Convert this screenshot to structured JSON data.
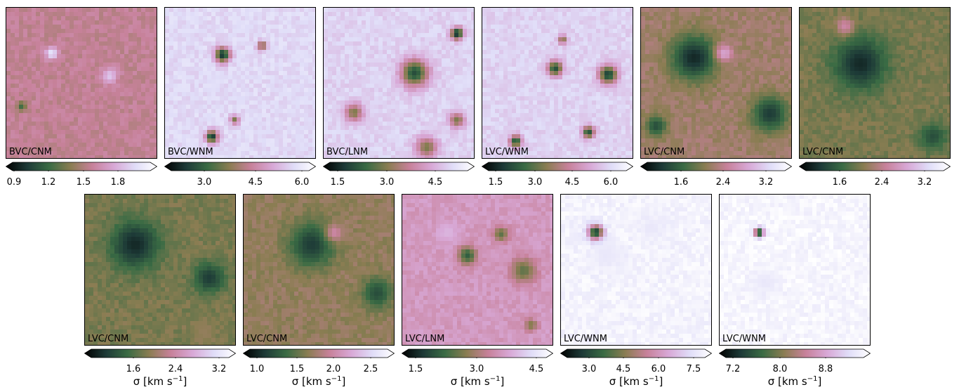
{
  "colormap": [
    "#000000",
    "#1d3a37",
    "#3a6b44",
    "#8a7d52",
    "#c7819a",
    "#d8a8d6",
    "#e0ddf8",
    "#ffffff"
  ],
  "panels": [
    {
      "label": "BVC/CNM",
      "ticks": [
        "0.9",
        "1.2",
        "1.5",
        "1.8"
      ],
      "base": 0.56,
      "blobs": [
        [
          0.3,
          0.3,
          0.04,
          0.9
        ],
        [
          0.68,
          0.45,
          0.05,
          0.8
        ],
        [
          0.1,
          0.65,
          0.03,
          0.3
        ]
      ]
    },
    {
      "label": "BVC/WNM",
      "ticks": [
        "3.0",
        "4.5",
        "6.0"
      ],
      "base": 0.85,
      "blobs": [
        [
          0.38,
          0.31,
          0.05,
          0.12
        ],
        [
          0.31,
          0.85,
          0.04,
          0.12
        ],
        [
          0.64,
          0.25,
          0.03,
          0.35
        ],
        [
          0.46,
          0.74,
          0.03,
          0.4
        ]
      ]
    },
    {
      "label": "BVC/LNM",
      "ticks": [
        "1.5",
        "3.0",
        "4.5"
      ],
      "base": 0.83,
      "blobs": [
        [
          0.6,
          0.43,
          0.09,
          0.2
        ],
        [
          0.88,
          0.17,
          0.04,
          0.1
        ],
        [
          0.2,
          0.69,
          0.06,
          0.4
        ],
        [
          0.68,
          0.92,
          0.07,
          0.4
        ],
        [
          0.88,
          0.74,
          0.05,
          0.4
        ]
      ]
    },
    {
      "label": "LVC/WNM",
      "ticks": [
        "1.5",
        "3.0",
        "4.5",
        "6.0"
      ],
      "base": 0.83,
      "blobs": [
        [
          0.48,
          0.4,
          0.05,
          0.2
        ],
        [
          0.83,
          0.44,
          0.06,
          0.15
        ],
        [
          0.7,
          0.82,
          0.04,
          0.2
        ],
        [
          0.22,
          0.88,
          0.04,
          0.2
        ],
        [
          0.53,
          0.21,
          0.03,
          0.4
        ]
      ]
    },
    {
      "label": "LVC/CNM",
      "ticks": [
        "1.6",
        "2.4",
        "3.2"
      ],
      "base": 0.48,
      "blobs": [
        [
          0.35,
          0.33,
          0.15,
          0.1
        ],
        [
          0.85,
          0.7,
          0.12,
          0.15
        ],
        [
          0.1,
          0.78,
          0.07,
          0.2
        ],
        [
          0.55,
          0.3,
          0.06,
          0.7
        ]
      ]
    },
    {
      "label": "LVC/CNM",
      "ticks": [
        "1.6",
        "2.4",
        "3.2"
      ],
      "base": 0.4,
      "blobs": [
        [
          0.4,
          0.37,
          0.17,
          0.1
        ],
        [
          0.88,
          0.85,
          0.09,
          0.2
        ],
        [
          0.3,
          0.12,
          0.06,
          0.6
        ]
      ]
    },
    {
      "label": "LVC/CNM",
      "ticks": [
        "1.6",
        "2.4",
        "3.2"
      ],
      "base": 0.4,
      "blobs": [
        [
          0.33,
          0.33,
          0.16,
          0.1
        ],
        [
          0.82,
          0.55,
          0.1,
          0.15
        ],
        [
          0.78,
          0.9,
          0.08,
          0.45
        ]
      ]
    },
    {
      "label": "LVC/CNM",
      "ticks": [
        "1.0",
        "1.5",
        "2.0",
        "2.5"
      ],
      "base": 0.45,
      "blobs": [
        [
          0.45,
          0.33,
          0.15,
          0.15
        ],
        [
          0.88,
          0.65,
          0.1,
          0.2
        ],
        [
          0.6,
          0.25,
          0.06,
          0.6
        ]
      ]
    },
    {
      "label": "LVC/LNM",
      "ticks": [
        "1.5",
        "3.0",
        "4.5"
      ],
      "base": 0.66,
      "blobs": [
        [
          0.43,
          0.4,
          0.06,
          0.25
        ],
        [
          0.65,
          0.26,
          0.05,
          0.35
        ],
        [
          0.8,
          0.5,
          0.08,
          0.35
        ],
        [
          0.85,
          0.86,
          0.04,
          0.4
        ],
        [
          0.3,
          0.25,
          0.07,
          0.75
        ]
      ]
    },
    {
      "label": "LVC/WNM",
      "ticks": [
        "3.0",
        "4.5",
        "6.0",
        "7.5"
      ],
      "base": 0.95,
      "blobs": [
        [
          0.23,
          0.25,
          0.05,
          0.1
        ],
        [
          0.6,
          0.22,
          0.08,
          0.9
        ],
        [
          0.3,
          0.4,
          0.1,
          0.9
        ]
      ]
    },
    {
      "label": "LVC/WNM",
      "ticks": [
        "7.2",
        "8.0",
        "8.8"
      ],
      "base": 0.96,
      "blobs": [
        [
          0.26,
          0.25,
          0.03,
          0.1
        ],
        [
          0.3,
          0.58,
          0.08,
          0.9
        ]
      ]
    }
  ],
  "colorbar_unit": "σ [km s",
  "colorbar_unit_sup": "−1",
  "colorbar_unit_end": "]"
}
